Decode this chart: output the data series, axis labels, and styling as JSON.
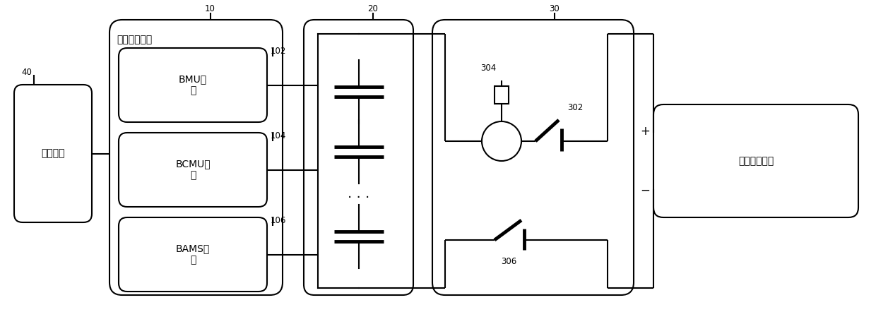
{
  "bg_color": "#ffffff",
  "line_color": "#000000",
  "lw": 1.5,
  "lw_thick": 3.5,
  "fig_width": 12.4,
  "fig_height": 4.42,
  "labels": {
    "monitor": "监控平台",
    "bms": "电池管理系统",
    "bmu": "BMU模\n块",
    "bcmu": "BCMU模\n块",
    "bams": "BAMS模\n块",
    "dc_unit": "直流电源单元",
    "n10": "10",
    "n20": "20",
    "n30": "30",
    "n40": "40",
    "n102": "102",
    "n104": "104",
    "n106": "106",
    "n302": "302",
    "n304": "304",
    "n306": "306",
    "plus": "+",
    "minus": "−",
    "dots": "· · ·"
  },
  "font_size_main": 10,
  "font_size_num": 8.5,
  "font_size_label": 9
}
